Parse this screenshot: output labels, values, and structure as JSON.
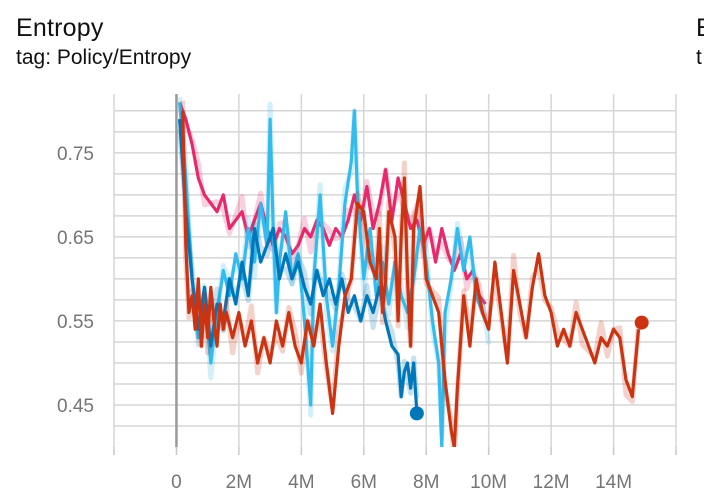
{
  "card": {
    "title": "Entropy",
    "tag": "tag: Policy/Entropy",
    "next_title_clip": "E",
    "next_tag_clip": "t"
  },
  "chart_data": {
    "type": "line",
    "title": "Entropy",
    "subtitle": "tag: Policy/Entropy",
    "xlabel": "",
    "ylabel": "",
    "xlim": [
      -2000000,
      16000000
    ],
    "ylim": [
      0.4,
      0.82
    ],
    "x_ticks": [
      0,
      2000000,
      4000000,
      6000000,
      8000000,
      10000000,
      12000000,
      14000000
    ],
    "x_tick_labels": [
      "0",
      "2M",
      "4M",
      "6M",
      "8M",
      "10M",
      "12M",
      "14M"
    ],
    "y_ticks": [
      0.45,
      0.55,
      0.65,
      0.75
    ],
    "y_tick_labels": [
      "0.45",
      "0.55",
      "0.65",
      "0.75"
    ],
    "grid": true,
    "series": [
      {
        "color": "#e7296c",
        "points": [
          [
            100000,
            0.81
          ],
          [
            300000,
            0.79
          ],
          [
            500000,
            0.76
          ],
          [
            700000,
            0.72
          ],
          [
            900000,
            0.7
          ],
          [
            1100000,
            0.69
          ],
          [
            1300000,
            0.68
          ],
          [
            1500000,
            0.7
          ],
          [
            1700000,
            0.66
          ],
          [
            1900000,
            0.67
          ],
          [
            2100000,
            0.68
          ],
          [
            2300000,
            0.65
          ],
          [
            2500000,
            0.67
          ],
          [
            2700000,
            0.69
          ],
          [
            2900000,
            0.66
          ],
          [
            3100000,
            0.64
          ],
          [
            3300000,
            0.66
          ],
          [
            3500000,
            0.65
          ],
          [
            3700000,
            0.63
          ],
          [
            3900000,
            0.64
          ],
          [
            4100000,
            0.66
          ],
          [
            4300000,
            0.65
          ],
          [
            4500000,
            0.67
          ],
          [
            4700000,
            0.66
          ],
          [
            4900000,
            0.64
          ],
          [
            5100000,
            0.66
          ],
          [
            5300000,
            0.65
          ],
          [
            5500000,
            0.67
          ],
          [
            5700000,
            0.7
          ],
          [
            5900000,
            0.67
          ],
          [
            6100000,
            0.71
          ],
          [
            6300000,
            0.66
          ],
          [
            6500000,
            0.69
          ],
          [
            6700000,
            0.73
          ],
          [
            6900000,
            0.67
          ],
          [
            7100000,
            0.72
          ],
          [
            7300000,
            0.69
          ],
          [
            7500000,
            0.66
          ],
          [
            7700000,
            0.67
          ],
          [
            7900000,
            0.64
          ],
          [
            8100000,
            0.66
          ],
          [
            8300000,
            0.62
          ],
          [
            8500000,
            0.66
          ],
          [
            8700000,
            0.63
          ],
          [
            8900000,
            0.61
          ],
          [
            9100000,
            0.63
          ],
          [
            9300000,
            0.6
          ],
          [
            9500000,
            0.61
          ],
          [
            9700000,
            0.58
          ],
          [
            9900000,
            0.57
          ]
        ]
      },
      {
        "color": "#33bbee",
        "points": [
          [
            100000,
            0.81
          ],
          [
            300000,
            0.72
          ],
          [
            500000,
            0.6
          ],
          [
            700000,
            0.53
          ],
          [
            900000,
            0.58
          ],
          [
            1100000,
            0.5
          ],
          [
            1300000,
            0.56
          ],
          [
            1500000,
            0.61
          ],
          [
            1700000,
            0.58
          ],
          [
            1900000,
            0.63
          ],
          [
            2100000,
            0.6
          ],
          [
            2300000,
            0.66
          ],
          [
            2500000,
            0.62
          ],
          [
            2700000,
            0.69
          ],
          [
            2900000,
            0.64
          ],
          [
            3000000,
            0.79
          ],
          [
            3100000,
            0.66
          ],
          [
            3200000,
            0.56
          ],
          [
            3300000,
            0.62
          ],
          [
            3500000,
            0.68
          ],
          [
            3700000,
            0.6
          ],
          [
            3900000,
            0.63
          ],
          [
            4100000,
            0.55
          ],
          [
            4300000,
            0.45
          ],
          [
            4400000,
            0.6
          ],
          [
            4600000,
            0.7
          ],
          [
            4800000,
            0.58
          ],
          [
            5000000,
            0.52
          ],
          [
            5200000,
            0.59
          ],
          [
            5400000,
            0.69
          ],
          [
            5600000,
            0.74
          ],
          [
            5700000,
            0.8
          ],
          [
            5800000,
            0.7
          ],
          [
            6000000,
            0.6
          ],
          [
            6200000,
            0.66
          ],
          [
            6400000,
            0.58
          ],
          [
            6600000,
            0.62
          ],
          [
            6800000,
            0.57
          ],
          [
            7000000,
            0.62
          ],
          [
            7200000,
            0.58
          ],
          [
            7400000,
            0.56
          ],
          [
            7600000,
            0.6
          ],
          [
            7800000,
            0.66
          ],
          [
            8000000,
            0.62
          ],
          [
            8200000,
            0.55
          ],
          [
            8400000,
            0.5
          ],
          [
            8500000,
            0.4
          ],
          [
            8600000,
            0.56
          ],
          [
            8800000,
            0.6
          ],
          [
            9000000,
            0.66
          ],
          [
            9200000,
            0.61
          ],
          [
            9400000,
            0.65
          ],
          [
            9600000,
            0.58
          ],
          [
            9800000,
            0.56
          ],
          [
            10000000,
            0.54
          ]
        ]
      },
      {
        "color": "#0077bb",
        "points": [
          [
            100000,
            0.79
          ],
          [
            300000,
            0.68
          ],
          [
            500000,
            0.6
          ],
          [
            700000,
            0.54
          ],
          [
            900000,
            0.59
          ],
          [
            1100000,
            0.52
          ],
          [
            1300000,
            0.57
          ],
          [
            1500000,
            0.55
          ],
          [
            1700000,
            0.6
          ],
          [
            1900000,
            0.57
          ],
          [
            2100000,
            0.62
          ],
          [
            2300000,
            0.58
          ],
          [
            2500000,
            0.66
          ],
          [
            2700000,
            0.62
          ],
          [
            2900000,
            0.64
          ],
          [
            3100000,
            0.66
          ],
          [
            3300000,
            0.6
          ],
          [
            3500000,
            0.63
          ],
          [
            3700000,
            0.6
          ],
          [
            3900000,
            0.62
          ],
          [
            4100000,
            0.59
          ],
          [
            4300000,
            0.57
          ],
          [
            4500000,
            0.61
          ],
          [
            4700000,
            0.58
          ],
          [
            4900000,
            0.6
          ],
          [
            5100000,
            0.57
          ],
          [
            5300000,
            0.6
          ],
          [
            5500000,
            0.56
          ],
          [
            5700000,
            0.58
          ],
          [
            5900000,
            0.55
          ],
          [
            6100000,
            0.58
          ],
          [
            6300000,
            0.56
          ],
          [
            6500000,
            0.59
          ],
          [
            6700000,
            0.55
          ],
          [
            6900000,
            0.52
          ],
          [
            7100000,
            0.51
          ],
          [
            7200000,
            0.46
          ],
          [
            7300000,
            0.49
          ],
          [
            7400000,
            0.5
          ],
          [
            7500000,
            0.47
          ],
          [
            7600000,
            0.5
          ],
          [
            7700000,
            0.44
          ]
        ]
      },
      {
        "color": "#cc3311",
        "points": [
          [
            200000,
            0.8
          ],
          [
            300000,
            0.64
          ],
          [
            400000,
            0.56
          ],
          [
            500000,
            0.58
          ],
          [
            600000,
            0.54
          ],
          [
            700000,
            0.6
          ],
          [
            800000,
            0.52
          ],
          [
            900000,
            0.57
          ],
          [
            1000000,
            0.53
          ],
          [
            1100000,
            0.59
          ],
          [
            1200000,
            0.55
          ],
          [
            1300000,
            0.52
          ],
          [
            1400000,
            0.57
          ],
          [
            1500000,
            0.54
          ],
          [
            1600000,
            0.56
          ],
          [
            1800000,
            0.53
          ],
          [
            2000000,
            0.56
          ],
          [
            2200000,
            0.52
          ],
          [
            2400000,
            0.55
          ],
          [
            2600000,
            0.5
          ],
          [
            2800000,
            0.53
          ],
          [
            3000000,
            0.5
          ],
          [
            3200000,
            0.55
          ],
          [
            3400000,
            0.52
          ],
          [
            3600000,
            0.56
          ],
          [
            3800000,
            0.52
          ],
          [
            4000000,
            0.5
          ],
          [
            4200000,
            0.55
          ],
          [
            4400000,
            0.52
          ],
          [
            4600000,
            0.57
          ],
          [
            4800000,
            0.5
          ],
          [
            5000000,
            0.44
          ],
          [
            5200000,
            0.52
          ],
          [
            5400000,
            0.58
          ],
          [
            5600000,
            0.6
          ],
          [
            5800000,
            0.69
          ],
          [
            6000000,
            0.68
          ],
          [
            6200000,
            0.62
          ],
          [
            6400000,
            0.6
          ],
          [
            6500000,
            0.66
          ],
          [
            6600000,
            0.56
          ],
          [
            6700000,
            0.6
          ],
          [
            6800000,
            0.68
          ],
          [
            7000000,
            0.65
          ],
          [
            7100000,
            0.55
          ],
          [
            7200000,
            0.65
          ],
          [
            7300000,
            0.72
          ],
          [
            7400000,
            0.6
          ],
          [
            7500000,
            0.52
          ],
          [
            7600000,
            0.66
          ],
          [
            7800000,
            0.71
          ],
          [
            8000000,
            0.6
          ],
          [
            8200000,
            0.58
          ],
          [
            8400000,
            0.56
          ],
          [
            8600000,
            0.48
          ],
          [
            8700000,
            0.45
          ],
          [
            8800000,
            0.42
          ],
          [
            8900000,
            0.4
          ],
          [
            9000000,
            0.47
          ],
          [
            9200000,
            0.58
          ],
          [
            9400000,
            0.52
          ],
          [
            9600000,
            0.6
          ],
          [
            9800000,
            0.56
          ],
          [
            10000000,
            0.54
          ],
          [
            10200000,
            0.62
          ],
          [
            10400000,
            0.56
          ],
          [
            10600000,
            0.5
          ],
          [
            10800000,
            0.61
          ],
          [
            11000000,
            0.57
          ],
          [
            11200000,
            0.53
          ],
          [
            11400000,
            0.59
          ],
          [
            11600000,
            0.63
          ],
          [
            11800000,
            0.58
          ],
          [
            12000000,
            0.56
          ],
          [
            12200000,
            0.52
          ],
          [
            12400000,
            0.54
          ],
          [
            12600000,
            0.52
          ],
          [
            12800000,
            0.56
          ],
          [
            13000000,
            0.54
          ],
          [
            13200000,
            0.52
          ],
          [
            13400000,
            0.5
          ],
          [
            13600000,
            0.53
          ],
          [
            13800000,
            0.52
          ],
          [
            14000000,
            0.54
          ],
          [
            14200000,
            0.53
          ],
          [
            14400000,
            0.48
          ],
          [
            14600000,
            0.46
          ],
          [
            14800000,
            0.54
          ]
        ]
      }
    ],
    "endpoints": [
      {
        "x": 7700000,
        "y": 0.44,
        "color": "#0077bb"
      },
      {
        "x": 14900000,
        "y": 0.548,
        "color": "#cc3311"
      }
    ]
  }
}
